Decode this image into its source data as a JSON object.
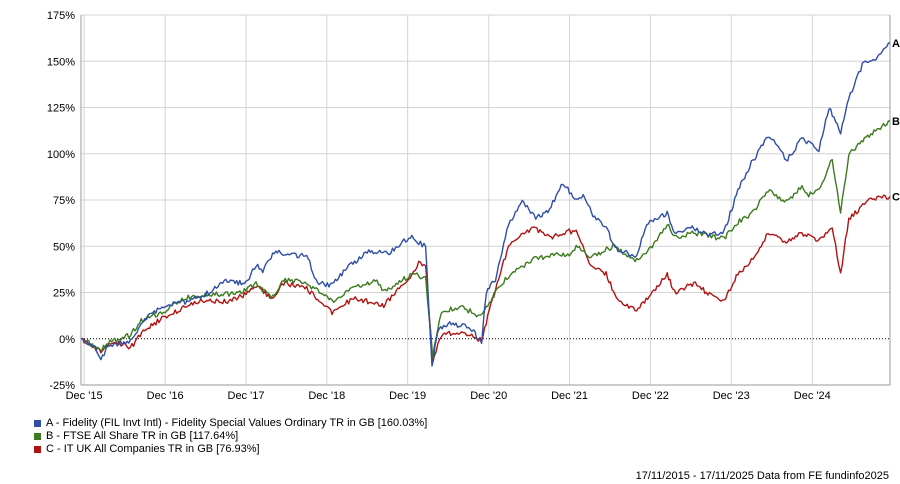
{
  "chart_data": {
    "type": "line",
    "y_unit": "%",
    "ylim": [
      -25,
      175
    ],
    "y_ticks": [
      -25,
      0,
      25,
      50,
      75,
      100,
      125,
      150,
      175
    ],
    "x_start": "2015-11-17",
    "x_end": "2025-11-17",
    "x_ticks": [
      {
        "label": "Dec '15",
        "date": "2015-12-01"
      },
      {
        "label": "Dec '16",
        "date": "2016-12-01"
      },
      {
        "label": "Dec '17",
        "date": "2017-12-01"
      },
      {
        "label": "Dec '18",
        "date": "2018-12-01"
      },
      {
        "label": "Dec '19",
        "date": "2019-12-01"
      },
      {
        "label": "Dec '20",
        "date": "2020-12-01"
      },
      {
        "label": "Dec '21",
        "date": "2021-12-01"
      },
      {
        "label": "Dec '22",
        "date": "2022-12-01"
      },
      {
        "label": "Dec '23",
        "date": "2023-12-01"
      },
      {
        "label": "Dec '24",
        "date": "2024-12-01"
      }
    ],
    "grid": true,
    "series": [
      {
        "name": "A - Fidelity (FIL Invt Intl) - Fidelity Special Values Ordinary TR in GB [160.03%]",
        "end_label": "A",
        "color": "#2f4fa5",
        "points": [
          [
            "2015-11-17",
            0
          ],
          [
            "2016-01-20",
            -5
          ],
          [
            "2016-02-15",
            -12
          ],
          [
            "2016-03-15",
            -4
          ],
          [
            "2016-06-20",
            -2
          ],
          [
            "2016-07-20",
            3
          ],
          [
            "2016-09-15",
            12
          ],
          [
            "2016-12-01",
            18
          ],
          [
            "2017-03-01",
            20
          ],
          [
            "2017-06-01",
            24
          ],
          [
            "2017-09-01",
            31
          ],
          [
            "2017-12-01",
            30
          ],
          [
            "2018-01-15",
            40
          ],
          [
            "2018-02-15",
            37
          ],
          [
            "2018-04-15",
            48
          ],
          [
            "2018-06-01",
            45
          ],
          [
            "2018-09-01",
            45
          ],
          [
            "2018-10-20",
            30
          ],
          [
            "2018-12-25",
            29
          ],
          [
            "2019-03-01",
            38
          ],
          [
            "2019-06-01",
            47
          ],
          [
            "2019-09-01",
            46
          ],
          [
            "2019-11-15",
            53
          ],
          [
            "2019-12-20",
            56
          ],
          [
            "2020-01-20",
            52
          ],
          [
            "2020-02-20",
            50
          ],
          [
            "2020-03-20",
            -15
          ],
          [
            "2020-04-15",
            5
          ],
          [
            "2020-06-01",
            8
          ],
          [
            "2020-09-01",
            7
          ],
          [
            "2020-10-30",
            -2
          ],
          [
            "2020-11-20",
            25
          ],
          [
            "2020-12-31",
            32
          ],
          [
            "2021-03-01",
            62
          ],
          [
            "2021-05-01",
            75
          ],
          [
            "2021-07-01",
            65
          ],
          [
            "2021-09-01",
            70
          ],
          [
            "2021-11-01",
            84
          ],
          [
            "2021-12-31",
            75
          ],
          [
            "2022-02-01",
            78
          ],
          [
            "2022-03-10",
            68
          ],
          [
            "2022-05-15",
            60
          ],
          [
            "2022-07-01",
            48
          ],
          [
            "2022-09-30",
            45
          ],
          [
            "2022-11-15",
            62
          ],
          [
            "2023-02-15",
            68
          ],
          [
            "2023-03-20",
            57
          ],
          [
            "2023-06-15",
            60
          ],
          [
            "2023-08-20",
            56
          ],
          [
            "2023-10-30",
            58
          ],
          [
            "2023-12-31",
            80
          ],
          [
            "2024-03-01",
            95
          ],
          [
            "2024-05-15",
            110
          ],
          [
            "2024-07-01",
            104
          ],
          [
            "2024-08-05",
            96
          ],
          [
            "2024-10-15",
            108
          ],
          [
            "2024-12-31",
            102
          ],
          [
            "2025-02-15",
            125
          ],
          [
            "2025-04-08",
            112
          ],
          [
            "2025-05-15",
            130
          ],
          [
            "2025-07-15",
            148
          ],
          [
            "2025-09-15",
            152
          ],
          [
            "2025-11-17",
            160
          ]
        ]
      },
      {
        "name": "B - FTSE All Share TR in GB [117.64%]",
        "end_label": "B",
        "color": "#3b7a1e",
        "points": [
          [
            "2015-11-17",
            0
          ],
          [
            "2016-02-12",
            -6
          ],
          [
            "2016-03-20",
            -2
          ],
          [
            "2016-06-27",
            2
          ],
          [
            "2016-08-15",
            10
          ],
          [
            "2016-12-01",
            15
          ],
          [
            "2017-03-01",
            22
          ],
          [
            "2017-06-01",
            24
          ],
          [
            "2017-09-01",
            24
          ],
          [
            "2017-12-01",
            26
          ],
          [
            "2018-01-15",
            30
          ],
          [
            "2018-03-25",
            22
          ],
          [
            "2018-05-20",
            32
          ],
          [
            "2018-09-01",
            30
          ],
          [
            "2018-12-25",
            20
          ],
          [
            "2019-04-01",
            28
          ],
          [
            "2019-07-15",
            31
          ],
          [
            "2019-08-15",
            25
          ],
          [
            "2019-12-20",
            35
          ],
          [
            "2020-01-20",
            34
          ],
          [
            "2020-02-20",
            33
          ],
          [
            "2020-03-23",
            -9
          ],
          [
            "2020-05-01",
            15
          ],
          [
            "2020-08-01",
            17
          ],
          [
            "2020-10-30",
            12
          ],
          [
            "2020-12-31",
            25
          ],
          [
            "2021-03-01",
            34
          ],
          [
            "2021-06-15",
            43
          ],
          [
            "2021-09-15",
            45
          ],
          [
            "2021-11-30",
            46
          ],
          [
            "2021-12-31",
            50
          ],
          [
            "2022-03-07",
            44
          ],
          [
            "2022-06-15",
            50
          ],
          [
            "2022-09-30",
            42
          ],
          [
            "2022-12-31",
            53
          ],
          [
            "2023-02-15",
            62
          ],
          [
            "2023-03-20",
            55
          ],
          [
            "2023-06-15",
            57
          ],
          [
            "2023-10-30",
            54
          ],
          [
            "2023-12-31",
            63
          ],
          [
            "2024-03-01",
            67
          ],
          [
            "2024-05-15",
            80
          ],
          [
            "2024-08-05",
            74
          ],
          [
            "2024-10-15",
            82
          ],
          [
            "2024-11-15",
            78
          ],
          [
            "2024-12-31",
            80
          ],
          [
            "2025-03-01",
            97
          ],
          [
            "2025-04-08",
            68
          ],
          [
            "2025-05-15",
            100
          ],
          [
            "2025-08-15",
            110
          ],
          [
            "2025-11-17",
            117.64
          ]
        ]
      },
      {
        "name": "C - IT UK All Companies TR in GB [76.93%]",
        "end_label": "C",
        "color": "#b11313",
        "points": [
          [
            "2015-11-17",
            0
          ],
          [
            "2016-02-15",
            -7
          ],
          [
            "2016-04-15",
            -1
          ],
          [
            "2016-06-27",
            -5
          ],
          [
            "2016-09-01",
            5
          ],
          [
            "2016-12-01",
            12
          ],
          [
            "2017-03-01",
            17
          ],
          [
            "2017-06-01",
            21
          ],
          [
            "2017-09-01",
            20
          ],
          [
            "2017-12-01",
            24
          ],
          [
            "2018-01-15",
            29
          ],
          [
            "2018-03-25",
            22
          ],
          [
            "2018-05-20",
            30
          ],
          [
            "2018-09-01",
            27
          ],
          [
            "2018-12-25",
            14
          ],
          [
            "2019-04-01",
            22
          ],
          [
            "2019-08-15",
            18
          ],
          [
            "2019-12-20",
            35
          ],
          [
            "2020-01-20",
            41
          ],
          [
            "2020-02-20",
            40
          ],
          [
            "2020-03-23",
            -12
          ],
          [
            "2020-05-01",
            2
          ],
          [
            "2020-08-01",
            4
          ],
          [
            "2020-10-30",
            -1
          ],
          [
            "2020-12-31",
            27
          ],
          [
            "2021-03-01",
            50
          ],
          [
            "2021-06-15",
            60
          ],
          [
            "2021-09-15",
            55
          ],
          [
            "2021-11-30",
            58
          ],
          [
            "2021-12-31",
            58
          ],
          [
            "2022-03-07",
            40
          ],
          [
            "2022-05-15",
            35
          ],
          [
            "2022-07-01",
            22
          ],
          [
            "2022-09-30",
            15
          ],
          [
            "2022-12-31",
            28
          ],
          [
            "2023-02-15",
            35
          ],
          [
            "2023-03-20",
            25
          ],
          [
            "2023-06-15",
            30
          ],
          [
            "2023-09-15",
            22
          ],
          [
            "2023-10-30",
            20
          ],
          [
            "2023-12-31",
            35
          ],
          [
            "2024-03-01",
            42
          ],
          [
            "2024-05-15",
            57
          ],
          [
            "2024-08-05",
            52
          ],
          [
            "2024-10-15",
            57
          ],
          [
            "2024-12-31",
            53
          ],
          [
            "2025-03-01",
            60
          ],
          [
            "2025-04-08",
            35
          ],
          [
            "2025-05-15",
            65
          ],
          [
            "2025-08-15",
            75
          ],
          [
            "2025-11-17",
            76.93
          ]
        ]
      }
    ]
  },
  "footer": {
    "text": "17/11/2015 - 17/11/2025 Data from FE fundinfo2025"
  }
}
